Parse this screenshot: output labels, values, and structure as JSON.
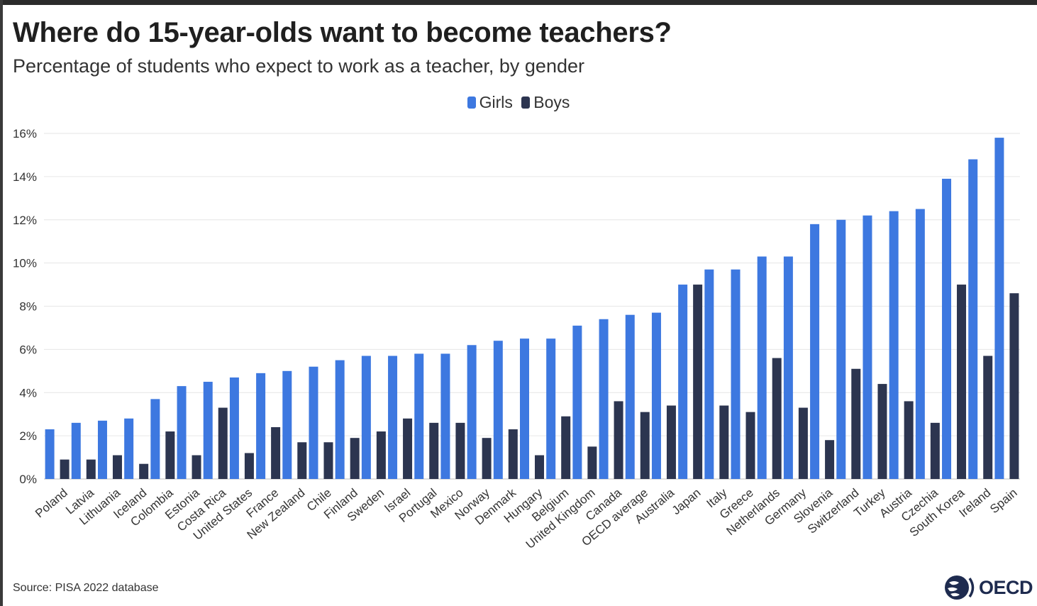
{
  "header": {
    "title": "Where do 15-year-olds want to become teachers?",
    "subtitle": "Percentage of students who expect to work as a teacher, by gender"
  },
  "footer": {
    "source": "Source: PISA 2022 database",
    "logo_text": "OECD"
  },
  "colors": {
    "girls": "#3d78e0",
    "boys": "#2c3550",
    "grid": "#e6e6e6",
    "axis_text": "#333333"
  },
  "chart_data": {
    "type": "bar",
    "title": "Where do 15-year-olds want to become teachers?",
    "subtitle": "Percentage of students who expect to work as a teacher, by gender",
    "xlabel": "",
    "ylabel": "",
    "ylim": [
      0,
      16
    ],
    "yticks": [
      "0%",
      "2%",
      "4%",
      "6%",
      "8%",
      "10%",
      "12%",
      "14%",
      "16%"
    ],
    "grid": true,
    "legend_position": "top-center",
    "categories": [
      "Poland",
      "Latvia",
      "Lithuania",
      "Iceland",
      "Colombia",
      "Estonia",
      "Costa Rica",
      "United States",
      "France",
      "New Zealand",
      "Chile",
      "Finland",
      "Sweden",
      "Israel",
      "Portugal",
      "Mexico",
      "Norway",
      "Denmark",
      "Hungary",
      "Belgium",
      "United Kingdom",
      "Canada",
      "OECD average",
      "Australia",
      "Japan",
      "Italy",
      "Greece",
      "Netherlands",
      "Germany",
      "Slovenia",
      "Switzerland",
      "Turkey",
      "Austria",
      "Czechia",
      "South Korea",
      "Ireland",
      "Spain"
    ],
    "series": [
      {
        "name": "Girls",
        "values": [
          2.3,
          2.6,
          2.7,
          2.8,
          3.7,
          4.3,
          4.5,
          4.7,
          4.9,
          5.0,
          5.2,
          5.5,
          5.7,
          5.7,
          5.8,
          5.8,
          6.2,
          6.4,
          6.5,
          6.5,
          7.1,
          7.4,
          7.6,
          7.7,
          9.0,
          9.7,
          9.7,
          10.3,
          10.3,
          11.8,
          12.0,
          12.2,
          12.4,
          12.5,
          13.9,
          14.8,
          15.8
        ]
      },
      {
        "name": "Boys",
        "values": [
          0.9,
          0.9,
          1.1,
          0.7,
          2.2,
          1.1,
          3.3,
          1.2,
          2.4,
          1.7,
          1.7,
          1.9,
          2.2,
          2.8,
          2.6,
          2.6,
          1.9,
          2.3,
          1.1,
          2.9,
          1.5,
          3.6,
          3.1,
          3.4,
          9.0,
          3.4,
          3.1,
          5.6,
          3.3,
          1.8,
          5.1,
          4.4,
          3.6,
          2.6,
          9.0,
          5.7,
          8.6
        ]
      }
    ]
  }
}
